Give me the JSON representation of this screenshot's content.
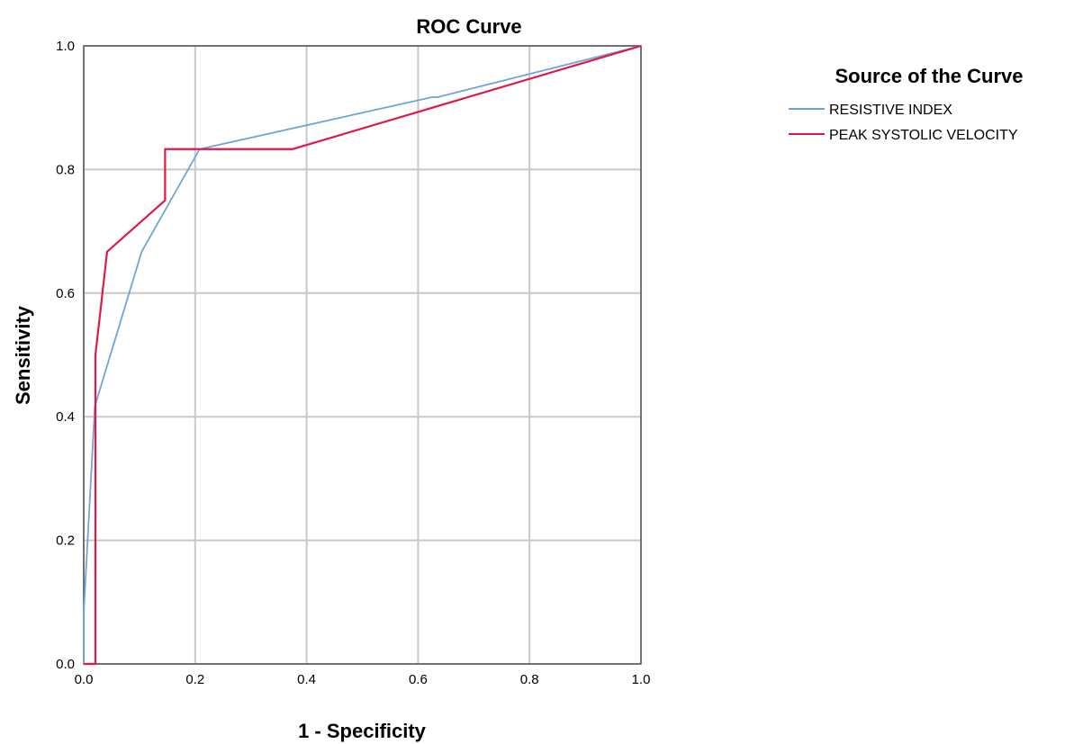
{
  "chart_data": {
    "type": "line",
    "title": "ROC Curve",
    "xlabel": "1 - Specificity",
    "ylabel": "Sensitivity",
    "xlim": [
      0.0,
      1.0
    ],
    "ylim": [
      0.0,
      1.0
    ],
    "xticks": [
      "0.0",
      "0.2",
      "0.4",
      "0.6",
      "0.8",
      "1.0"
    ],
    "yticks": [
      "0.0",
      "0.2",
      "0.4",
      "0.6",
      "0.8",
      "1.0"
    ],
    "grid": true,
    "legend": {
      "title": "Source of the Curve",
      "placement": "right"
    },
    "series": [
      {
        "name": "RESISTIVE INDEX",
        "color": "#6fa4d9",
        "x": [
          0.0,
          0.0,
          0.02,
          0.104,
          0.208,
          0.625,
          0.635,
          1.0
        ],
        "y": [
          0.0,
          0.083,
          0.417,
          0.667,
          0.833,
          0.917,
          0.917,
          1.0
        ]
      },
      {
        "name": "PEAK SYSTOLIC VELOCITY",
        "color": "#e0194a",
        "x": [
          0.0,
          0.021,
          0.021,
          0.042,
          0.146,
          0.146,
          0.375,
          1.0
        ],
        "y": [
          0.0,
          0.0,
          0.5,
          0.667,
          0.75,
          0.833,
          0.833,
          1.0
        ]
      }
    ]
  }
}
